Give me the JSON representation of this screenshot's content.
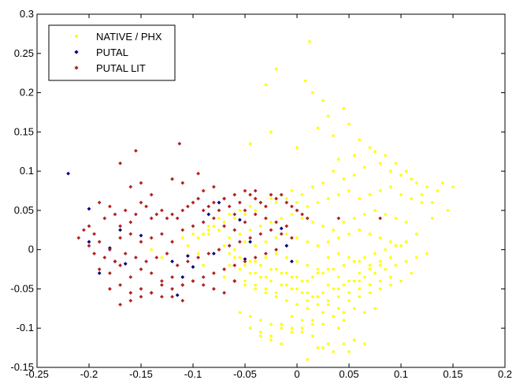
{
  "chart_data": {
    "type": "scatter",
    "title": "",
    "xlabel": "",
    "ylabel": "",
    "xlim": [
      -0.25,
      0.2
    ],
    "ylim": [
      -0.15,
      0.3
    ],
    "x_ticks": [
      -0.25,
      -0.2,
      -0.15,
      -0.1,
      -0.05,
      0,
      0.05,
      0.1,
      0.15,
      0.2
    ],
    "x_tick_labels": [
      "-0.25",
      "-0.2",
      "-0.15",
      "-0.1",
      "-0.05",
      "0",
      "0.05",
      "0.1",
      "0.15",
      "0.2"
    ],
    "y_ticks": [
      -0.15,
      -0.1,
      -0.05,
      0,
      0.05,
      0.1,
      0.15,
      0.2,
      0.25,
      0.3
    ],
    "y_tick_labels": [
      "-0.15",
      "-0.1",
      "-0.05",
      "0",
      "0.05",
      "0.1",
      "0.15",
      "0.2",
      "0.25",
      "0.3"
    ],
    "grid": false,
    "legend_position": "top-left",
    "series": [
      {
        "name": "NATIVE / PHX",
        "color": "#ffff00",
        "marker": "point",
        "x": [
          0.012,
          0.025,
          0.008,
          0.03,
          0.045,
          0.05,
          -0.02,
          -0.03,
          0.015,
          0.02,
          -0.045,
          -0.025,
          0.0,
          0.035,
          0.06,
          0.055,
          0.07,
          0.075,
          0.08,
          0.085,
          0.09,
          0.095,
          0.1,
          0.105,
          0.11,
          0.115,
          0.12,
          0.125,
          0.13,
          0.135,
          0.14,
          0.145,
          0.15,
          0.04,
          0.065,
          0.055,
          0.045,
          0.035,
          0.025,
          0.015,
          0.005,
          -0.005,
          -0.015,
          -0.025,
          -0.035,
          -0.045,
          -0.055,
          -0.065,
          -0.075,
          -0.085,
          -0.09,
          -0.08,
          -0.07,
          -0.06,
          -0.05,
          -0.04,
          -0.03,
          -0.02,
          -0.01,
          0.0,
          0.01,
          0.02,
          0.03,
          0.04,
          0.05,
          0.06,
          0.07,
          0.08,
          0.09,
          0.1,
          0.11,
          0.12,
          0.13,
          -0.095,
          -0.085,
          -0.075,
          -0.065,
          -0.055,
          -0.045,
          -0.035,
          -0.025,
          -0.015,
          -0.005,
          0.005,
          0.015,
          0.025,
          0.035,
          0.045,
          0.055,
          0.065,
          0.075,
          0.085,
          0.095,
          0.105,
          0.115,
          -0.07,
          -0.06,
          -0.05,
          -0.04,
          -0.03,
          -0.02,
          -0.01,
          0.0,
          0.01,
          0.02,
          0.03,
          0.04,
          0.05,
          0.06,
          0.07,
          0.08,
          0.09,
          0.1,
          -0.06,
          -0.05,
          -0.04,
          -0.03,
          -0.02,
          -0.01,
          0.0,
          0.01,
          0.02,
          0.03,
          0.04,
          0.05,
          0.06,
          0.07,
          0.08,
          0.09,
          -0.04,
          -0.03,
          -0.02,
          -0.01,
          0.0,
          0.01,
          0.02,
          0.03,
          0.04,
          0.05,
          0.06,
          0.07,
          0.08,
          -0.03,
          -0.02,
          -0.01,
          0.0,
          0.01,
          0.02,
          0.03,
          0.04,
          0.05,
          0.06,
          0.07,
          0.08,
          0.09,
          0.1,
          0.11,
          -0.05,
          -0.04,
          -0.03,
          -0.02,
          -0.01,
          0.0,
          0.01,
          0.02,
          0.03,
          0.04,
          0.05,
          0.06,
          0.07,
          0.08,
          0.09,
          -0.065,
          -0.055,
          -0.045,
          -0.035,
          -0.025,
          -0.015,
          -0.005,
          0.005,
          0.015,
          0.025,
          0.035,
          0.045,
          0.055,
          0.065,
          0.075,
          0.085,
          0.095,
          0.105,
          0.115,
          0.125,
          -0.075,
          -0.065,
          -0.055,
          -0.045,
          -0.035,
          -0.025,
          -0.015,
          -0.005,
          0.005,
          0.015,
          0.025,
          0.035,
          0.045,
          0.055,
          0.065,
          0.075,
          0.085,
          0.095,
          0.105,
          -0.08,
          -0.07,
          -0.06,
          -0.05,
          -0.04,
          -0.03,
          -0.02,
          -0.01,
          0.0,
          0.01,
          0.02,
          0.03,
          0.04,
          0.05,
          0.06,
          0.07,
          0.08,
          0.09,
          -0.055,
          -0.045,
          -0.035,
          -0.025,
          -0.015,
          -0.005,
          0.005,
          0.015,
          0.025,
          0.035,
          0.045,
          0.055,
          0.065,
          0.075,
          -0.045,
          -0.035,
          -0.025,
          -0.015,
          -0.005,
          0.005,
          0.015,
          0.025,
          0.035,
          0.045,
          0.055,
          0.065,
          -0.035,
          -0.025,
          -0.015,
          -0.005,
          0.005,
          0.015,
          0.025,
          0.035,
          0.045,
          0.055,
          0.01,
          0.02,
          0.03,
          0.04,
          0.05,
          -0.12,
          -0.13,
          -0.14,
          -0.11,
          -0.1,
          -0.09,
          -0.105,
          -0.095,
          -0.085
        ],
        "y": [
          0.265,
          0.19,
          0.215,
          0.17,
          0.18,
          0.16,
          0.23,
          0.21,
          0.2,
          0.155,
          0.135,
          0.15,
          0.13,
          0.145,
          0.14,
          0.12,
          0.13,
          0.125,
          0.11,
          0.12,
          0.1,
          0.11,
          0.095,
          0.1,
          0.09,
          0.085,
          0.07,
          0.08,
          0.06,
          0.075,
          0.085,
          0.05,
          0.08,
          0.115,
          0.105,
          0.095,
          0.09,
          0.1,
          0.085,
          0.08,
          0.07,
          0.075,
          0.07,
          0.065,
          0.06,
          0.055,
          0.05,
          0.045,
          0.04,
          0.03,
          0.02,
          0.03,
          0.035,
          0.04,
          0.045,
          0.05,
          0.055,
          0.06,
          0.065,
          0.06,
          0.055,
          0.06,
          0.065,
          0.07,
          0.075,
          0.065,
          0.07,
          0.075,
          0.08,
          0.07,
          0.065,
          0.06,
          0.04,
          0.015,
          0.02,
          0.025,
          0.015,
          0.02,
          0.025,
          0.03,
          0.035,
          0.04,
          0.045,
          0.04,
          0.035,
          0.03,
          0.025,
          0.035,
          0.04,
          0.045,
          0.05,
          0.045,
          0.04,
          0.035,
          0.02,
          0.005,
          0.0,
          0.01,
          0.005,
          0.01,
          0.015,
          0.02,
          0.015,
          0.01,
          0.005,
          0.01,
          0.015,
          0.02,
          0.025,
          0.02,
          0.015,
          0.01,
          0.005,
          -0.01,
          -0.02,
          -0.015,
          -0.01,
          -0.005,
          -0.01,
          -0.015,
          -0.02,
          -0.025,
          -0.01,
          -0.005,
          -0.01,
          -0.015,
          -0.02,
          -0.015,
          -0.01,
          -0.03,
          -0.035,
          -0.025,
          -0.03,
          -0.035,
          -0.04,
          -0.03,
          -0.025,
          -0.035,
          -0.04,
          -0.03,
          -0.025,
          -0.02,
          -0.05,
          -0.055,
          -0.045,
          -0.05,
          -0.055,
          -0.06,
          -0.045,
          -0.05,
          -0.055,
          -0.04,
          -0.045,
          -0.05,
          -0.035,
          -0.04,
          -0.03,
          -0.04,
          -0.045,
          -0.05,
          -0.06,
          -0.065,
          -0.07,
          -0.065,
          -0.06,
          -0.07,
          -0.075,
          -0.065,
          -0.06,
          -0.055,
          -0.05,
          -0.045,
          -0.02,
          -0.025,
          -0.03,
          -0.035,
          -0.04,
          -0.045,
          -0.05,
          -0.055,
          -0.06,
          -0.055,
          -0.05,
          -0.045,
          -0.04,
          -0.035,
          -0.03,
          -0.025,
          -0.02,
          -0.015,
          -0.01,
          -0.005,
          0.0,
          -0.005,
          -0.01,
          -0.015,
          -0.02,
          -0.025,
          -0.03,
          -0.035,
          -0.04,
          -0.035,
          -0.03,
          -0.025,
          -0.02,
          -0.015,
          -0.01,
          -0.005,
          0.0,
          0.005,
          0.01,
          -0.03,
          -0.035,
          -0.04,
          -0.045,
          -0.05,
          -0.055,
          -0.06,
          -0.065,
          -0.07,
          -0.075,
          -0.07,
          -0.065,
          -0.06,
          -0.055,
          -0.05,
          -0.045,
          -0.04,
          -0.035,
          -0.08,
          -0.085,
          -0.09,
          -0.095,
          -0.1,
          -0.085,
          -0.09,
          -0.095,
          -0.08,
          -0.085,
          -0.09,
          -0.075,
          -0.08,
          -0.075,
          -0.1,
          -0.105,
          -0.11,
          -0.095,
          -0.1,
          -0.105,
          -0.09,
          -0.095,
          -0.085,
          -0.08,
          -0.115,
          -0.12,
          -0.11,
          -0.115,
          -0.12,
          -0.105,
          -0.1,
          -0.11,
          -0.125,
          -0.13,
          -0.12,
          -0.115,
          -0.14,
          -0.125,
          -0.12,
          -0.1,
          -0.13,
          0.01,
          -0.01,
          0.0,
          0.015,
          0.02,
          -0.02,
          0.005,
          -0.005,
          0.025
        ]
      },
      {
        "name": "PUTAL",
        "color": "#00007f",
        "marker": "diamond",
        "x": [
          -0.22,
          -0.2,
          -0.2,
          -0.19,
          -0.18,
          -0.175,
          -0.17,
          -0.165,
          -0.15,
          -0.12,
          -0.115,
          -0.11,
          -0.105,
          -0.1,
          -0.085,
          -0.08,
          -0.075,
          -0.06,
          -0.055,
          -0.05,
          -0.045,
          -0.015,
          -0.01,
          -0.005
        ],
        "y": [
          0.097,
          0.052,
          0.01,
          -0.03,
          0.002,
          -0.015,
          0.025,
          -0.018,
          0.018,
          -0.015,
          -0.058,
          -0.035,
          -0.008,
          -0.022,
          0.045,
          -0.005,
          0.06,
          -0.04,
          0.038,
          -0.012,
          0.01,
          0.027,
          0.005,
          -0.015
        ]
      },
      {
        "name": "PUTAL LIT",
        "color": "#b22222",
        "marker": "diamond",
        "x": [
          -0.21,
          -0.205,
          -0.2,
          -0.195,
          -0.19,
          -0.185,
          -0.18,
          -0.175,
          -0.17,
          -0.165,
          -0.16,
          -0.155,
          -0.15,
          -0.145,
          -0.14,
          -0.135,
          -0.13,
          -0.125,
          -0.12,
          -0.115,
          -0.11,
          -0.105,
          -0.1,
          -0.095,
          -0.09,
          -0.085,
          -0.08,
          -0.075,
          -0.07,
          -0.065,
          -0.06,
          -0.055,
          -0.05,
          -0.045,
          -0.04,
          -0.035,
          -0.03,
          -0.025,
          -0.02,
          -0.015,
          -0.01,
          -0.005,
          0.0,
          0.005,
          0.01,
          -0.2,
          -0.19,
          -0.18,
          -0.17,
          -0.16,
          -0.15,
          -0.14,
          -0.13,
          -0.12,
          -0.11,
          -0.1,
          -0.09,
          -0.08,
          -0.07,
          -0.06,
          -0.05,
          -0.04,
          -0.03,
          -0.02,
          -0.01,
          -0.195,
          -0.185,
          -0.175,
          -0.165,
          -0.155,
          -0.145,
          -0.135,
          -0.125,
          -0.115,
          -0.105,
          -0.095,
          -0.085,
          -0.075,
          -0.065,
          -0.055,
          -0.045,
          -0.035,
          -0.025,
          -0.015,
          -0.005,
          -0.19,
          -0.18,
          -0.17,
          -0.16,
          -0.15,
          -0.14,
          -0.13,
          -0.12,
          -0.11,
          -0.1,
          -0.09,
          -0.08,
          -0.07,
          -0.06,
          -0.05,
          -0.04,
          -0.03,
          -0.02,
          -0.18,
          -0.17,
          -0.16,
          -0.15,
          -0.14,
          -0.13,
          -0.12,
          -0.11,
          -0.1,
          -0.09,
          -0.08,
          -0.07,
          -0.06,
          -0.17,
          -0.16,
          -0.15,
          -0.14,
          -0.13,
          -0.12,
          -0.11,
          -0.16,
          -0.15,
          -0.14,
          -0.12,
          -0.11,
          -0.09,
          -0.08,
          -0.07,
          -0.06,
          -0.05,
          -0.04,
          0.04,
          0.08,
          -0.155,
          -0.17,
          -0.113,
          -0.095
        ],
        "y": [
          0.015,
          0.025,
          0.03,
          0.02,
          0.06,
          0.04,
          0.055,
          0.045,
          0.03,
          0.05,
          0.035,
          0.045,
          0.06,
          0.055,
          0.04,
          0.045,
          0.05,
          0.04,
          0.045,
          0.04,
          0.05,
          0.055,
          0.06,
          0.065,
          0.05,
          0.055,
          0.06,
          0.05,
          0.065,
          0.055,
          0.045,
          0.06,
          0.05,
          0.07,
          0.065,
          0.06,
          0.055,
          0.07,
          0.065,
          0.07,
          0.06,
          0.055,
          0.05,
          0.045,
          0.04,
          0.005,
          0.01,
          0.0,
          0.015,
          0.02,
          0.01,
          0.015,
          0.02,
          0.01,
          0.025,
          0.03,
          0.035,
          0.04,
          0.03,
          0.025,
          0.035,
          0.045,
          0.04,
          0.035,
          0.03,
          -0.005,
          -0.01,
          -0.015,
          -0.005,
          -0.01,
          -0.015,
          -0.01,
          -0.005,
          -0.02,
          -0.015,
          -0.01,
          -0.005,
          0.0,
          0.005,
          0.01,
          0.015,
          0.02,
          0.025,
          0.02,
          0.015,
          -0.025,
          -0.03,
          -0.02,
          -0.035,
          -0.025,
          -0.03,
          -0.04,
          -0.035,
          -0.045,
          -0.04,
          -0.035,
          -0.03,
          -0.025,
          -0.02,
          -0.015,
          -0.01,
          -0.005,
          0.0,
          -0.05,
          -0.045,
          -0.055,
          -0.05,
          -0.055,
          -0.06,
          -0.05,
          -0.045,
          -0.04,
          -0.045,
          -0.05,
          -0.055,
          -0.04,
          -0.07,
          -0.065,
          -0.06,
          -0.055,
          -0.045,
          -0.06,
          -0.065,
          0.08,
          0.085,
          0.07,
          0.09,
          0.085,
          0.075,
          0.08,
          0.065,
          0.07,
          0.075,
          0.075,
          0.04,
          0.04,
          0.126,
          0.11,
          0.135,
          0.097
        ]
      }
    ]
  }
}
